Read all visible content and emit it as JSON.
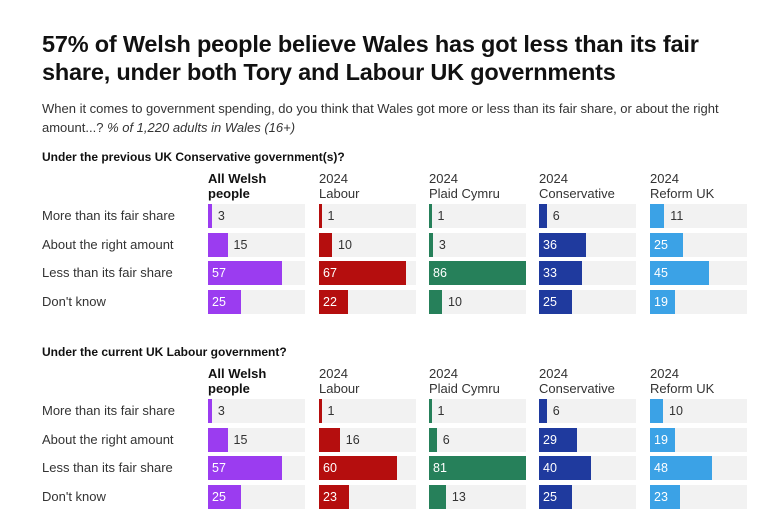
{
  "title": "57% of Welsh people believe Wales has got less than its fair share, under both Tory and Labour UK governments",
  "subtitle": "When it comes to government spending, do you think that Wales got more or less than its fair share, or about the right amount...?",
  "sample": "% of 1,220 adults in Wales (16+)",
  "colors": {
    "All Welsh people": "#9b3cf0",
    "Labour": "#b50e0e",
    "Plaid Cymru": "#26805a",
    "Conservative": "#1f3a9e",
    "Reform UK": "#3ba2e6"
  },
  "chart_data": [
    {
      "type": "bar",
      "title": "Under the previous UK Conservative government(s)?",
      "categories": [
        "More than its fair share",
        "About the right amount",
        "Less than its fair share",
        "Don't know"
      ],
      "series": [
        {
          "name": "All Welsh people",
          "values": [
            3,
            15,
            57,
            25
          ]
        },
        {
          "name": "2024 Labour",
          "values": [
            1,
            10,
            67,
            22
          ]
        },
        {
          "name": "2024 Plaid Cymru",
          "values": [
            1,
            3,
            86,
            10
          ]
        },
        {
          "name": "2024 Conservative",
          "values": [
            6,
            36,
            33,
            25
          ]
        },
        {
          "name": "2024 Reform UK",
          "values": [
            11,
            25,
            45,
            19
          ]
        }
      ],
      "xlim": [
        0,
        100
      ]
    },
    {
      "type": "bar",
      "title": "Under the current UK Labour government?",
      "categories": [
        "More than its fair share",
        "About the right amount",
        "Less than its fair share",
        "Don't know"
      ],
      "series": [
        {
          "name": "All Welsh people",
          "values": [
            3,
            15,
            57,
            25
          ]
        },
        {
          "name": "2024 Labour",
          "values": [
            1,
            16,
            60,
            23
          ]
        },
        {
          "name": "2024 Plaid Cymru",
          "values": [
            1,
            6,
            81,
            13
          ]
        },
        {
          "name": "2024 Conservative",
          "values": [
            6,
            29,
            40,
            25
          ]
        },
        {
          "name": "2024 Reform UK",
          "values": [
            10,
            19,
            48,
            23
          ]
        }
      ],
      "xlim": [
        0,
        100
      ]
    }
  ]
}
